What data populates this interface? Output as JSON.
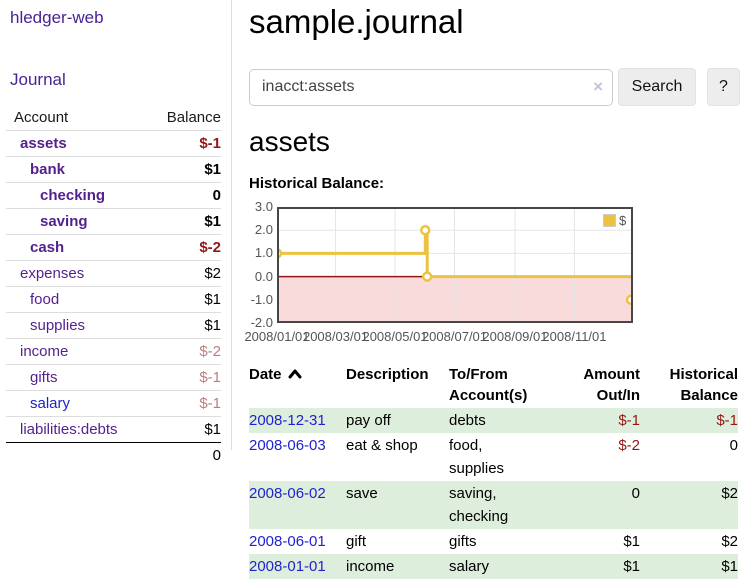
{
  "sidebar": {
    "brand": "hledger-web",
    "journal_link": "Journal",
    "accounts_table": {
      "account_header": "Account",
      "balance_header": "Balance",
      "rows": [
        {
          "name": "assets",
          "indent": 0,
          "bold": true,
          "balance": "$-1",
          "balance_style": "neg"
        },
        {
          "name": "bank",
          "indent": 1,
          "bold": true,
          "balance": "$1",
          "balance_style": "pos"
        },
        {
          "name": "checking",
          "indent": 2,
          "bold": true,
          "balance": "0",
          "balance_style": "pos"
        },
        {
          "name": "saving",
          "indent": 2,
          "bold": true,
          "balance": "$1",
          "balance_style": "pos"
        },
        {
          "name": "cash",
          "indent": 1,
          "bold": true,
          "balance": "$-2",
          "balance_style": "neg"
        },
        {
          "name": "expenses",
          "indent": 0,
          "bold": false,
          "balance": "$2",
          "balance_style": "pos"
        },
        {
          "name": "food",
          "indent": 1,
          "bold": false,
          "balance": "$1",
          "balance_style": "pos"
        },
        {
          "name": "supplies",
          "indent": 1,
          "bold": false,
          "balance": "$1",
          "balance_style": "pos"
        },
        {
          "name": "income",
          "indent": 0,
          "bold": false,
          "balance": "$-2",
          "balance_style": "neg-muted"
        },
        {
          "name": "gifts",
          "indent": 1,
          "bold": false,
          "balance": "$-1",
          "balance_style": "neg-muted"
        },
        {
          "name": "salary",
          "indent": 1,
          "bold": false,
          "balance": "$-1",
          "balance_style": "neg-muted",
          "link_color": "blue"
        },
        {
          "name": "liabilities:debts",
          "indent": 0,
          "bold": false,
          "balance": "$1",
          "balance_style": "pos"
        }
      ],
      "total": "0"
    }
  },
  "header": {
    "title": "sample.journal"
  },
  "search": {
    "value": "inacct:assets",
    "clear_icon": "×",
    "button_label": "Search",
    "help_label": "?"
  },
  "account_page": {
    "heading": "assets",
    "chart_title": "Historical Balance:"
  },
  "chart_data": {
    "type": "line",
    "steps": true,
    "title": "Historical Balance",
    "legend": "$",
    "legend_position": "top-right",
    "grid": true,
    "ylim": [
      -2.0,
      3.0
    ],
    "yticks": [
      "3.0",
      "2.0",
      "1.0",
      "0.0",
      "-1.0",
      "-2.0"
    ],
    "ytick_values": [
      3,
      2,
      1,
      0,
      -1,
      -2
    ],
    "xrange": [
      "2008-01-01",
      "2008-12-31"
    ],
    "xticks": [
      "2008/01/01",
      "2008/03/01",
      "2008/05/01",
      "2008/07/01",
      "2008/09/01",
      "2008/11/01"
    ],
    "series": [
      {
        "name": "$",
        "points": [
          {
            "x": "2008-01-01",
            "y": 1.0
          },
          {
            "x": "2008-06-01",
            "y": 2.0
          },
          {
            "x": "2008-06-03",
            "y": 0.0
          },
          {
            "x": "2008-12-31",
            "y": -1.0
          }
        ]
      }
    ]
  },
  "register_table": {
    "headers": {
      "date": "Date",
      "description": "Description",
      "accounts": "To/From\nAccount(s)",
      "amount": "Amount\nOut/In",
      "balance": "Historical\nBalance"
    },
    "rows": [
      {
        "date": "2008-12-31",
        "description": "pay off",
        "accounts": "debts",
        "amount": "$-1",
        "amount_neg": true,
        "balance": "$-1",
        "balance_neg": true,
        "shaded": true
      },
      {
        "date": "2008-06-03",
        "description": "eat & shop",
        "accounts": "food, supplies",
        "amount": "$-2",
        "amount_neg": true,
        "balance": "0",
        "balance_neg": false,
        "shaded": false
      },
      {
        "date": "2008-06-02",
        "description": "save",
        "accounts": "saving, checking",
        "amount": "0",
        "amount_neg": false,
        "balance": "$2",
        "balance_neg": false,
        "shaded": true
      },
      {
        "date": "2008-06-01",
        "description": "gift",
        "accounts": "gifts",
        "amount": "$1",
        "amount_neg": false,
        "balance": "$2",
        "balance_neg": false,
        "shaded": false
      },
      {
        "date": "2008-01-01",
        "description": "income",
        "accounts": "salary",
        "amount": "$1",
        "amount_neg": false,
        "balance": "$1",
        "balance_neg": false,
        "shaded": true
      }
    ]
  },
  "colors": {
    "link_purple": "#4b2293",
    "link_blue": "#2222cc",
    "negative_red": "#961616",
    "negative_muted": "#bd7e7e",
    "row_green": "#ddeedd",
    "chart_gold": "#EDC240",
    "chart_negative_bg": "#f9dbdb",
    "chart_zero_line": "#8e1717",
    "chart_grid": "#e5e5e5",
    "chart_border": "#464646",
    "axis_text": "#545454"
  }
}
